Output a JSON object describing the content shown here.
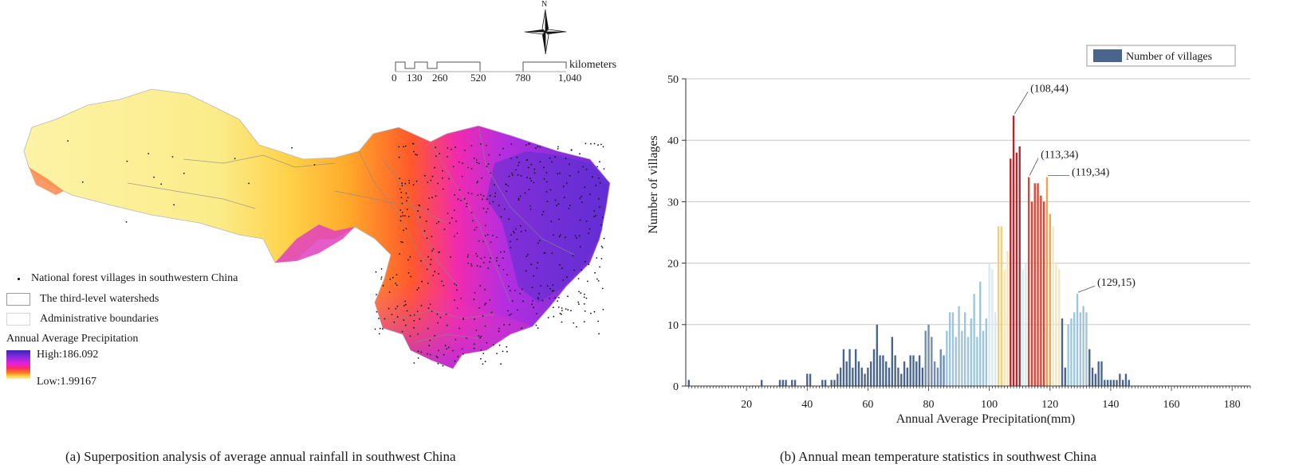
{
  "map": {
    "caption": "(a) Superposition analysis of average annual rainfall in southwest China",
    "north_label": "N",
    "scale_unit": "kilometers",
    "scale_ticks": [
      "0",
      "130",
      "260",
      "520",
      "780",
      "1,040"
    ],
    "legend": {
      "villages": "National forest villages in southwestern China",
      "watersheds": "The third-level watersheds",
      "admin": "Administrative boundaries",
      "precip_title": "Annual Average Precipitation",
      "high": "High:186.092",
      "low": "Low:1.99167"
    },
    "colors": {
      "high": "#3b22b8",
      "mid": "#e020e0",
      "warm": "#ff7a1a",
      "low": "#fff19a"
    }
  },
  "chart": {
    "caption": "(b) Annual mean temperature statistics in southwest China"
  },
  "chart_data": {
    "type": "bar",
    "title": "",
    "xlabel": "Annual Average Precipitation(mm)",
    "ylabel": "Number of villages",
    "xlim": [
      0,
      186
    ],
    "ylim": [
      0,
      50
    ],
    "xticks": [
      20,
      40,
      60,
      80,
      100,
      120,
      140,
      160,
      180
    ],
    "yticks": [
      0,
      10,
      20,
      30,
      40,
      50
    ],
    "legend": "Number of villages",
    "legend_position": "top-right",
    "grid": "horizontal",
    "colors": {
      "dark_blue": "#4a6490",
      "blue": "#6d8cb8",
      "light_blue": "#9ec5dc",
      "pale": "#d6ebf5",
      "light_yellow": "#f6e6b8",
      "yellow": "#f2cf7a",
      "orange": "#f2a14a",
      "red": "#d9473a",
      "dark_red": "#b8242a"
    },
    "bars": [
      {
        "x": 1,
        "y": 1
      },
      {
        "x": 25,
        "y": 1
      },
      {
        "x": 31,
        "y": 1
      },
      {
        "x": 32,
        "y": 1
      },
      {
        "x": 33,
        "y": 1
      },
      {
        "x": 35,
        "y": 1
      },
      {
        "x": 36,
        "y": 1
      },
      {
        "x": 40,
        "y": 2
      },
      {
        "x": 41,
        "y": 2
      },
      {
        "x": 45,
        "y": 1
      },
      {
        "x": 46,
        "y": 1
      },
      {
        "x": 48,
        "y": 1
      },
      {
        "x": 49,
        "y": 1
      },
      {
        "x": 50,
        "y": 2
      },
      {
        "x": 51,
        "y": 3
      },
      {
        "x": 52,
        "y": 6
      },
      {
        "x": 53,
        "y": 4
      },
      {
        "x": 54,
        "y": 6
      },
      {
        "x": 55,
        "y": 3
      },
      {
        "x": 56,
        "y": 6
      },
      {
        "x": 57,
        "y": 4
      },
      {
        "x": 58,
        "y": 3
      },
      {
        "x": 59,
        "y": 2
      },
      {
        "x": 60,
        "y": 3
      },
      {
        "x": 61,
        "y": 4
      },
      {
        "x": 62,
        "y": 6
      },
      {
        "x": 63,
        "y": 10
      },
      {
        "x": 64,
        "y": 5
      },
      {
        "x": 65,
        "y": 5
      },
      {
        "x": 66,
        "y": 4
      },
      {
        "x": 67,
        "y": 3
      },
      {
        "x": 68,
        "y": 8
      },
      {
        "x": 69,
        "y": 5
      },
      {
        "x": 70,
        "y": 3
      },
      {
        "x": 71,
        "y": 2
      },
      {
        "x": 72,
        "y": 4
      },
      {
        "x": 73,
        "y": 3
      },
      {
        "x": 74,
        "y": 5
      },
      {
        "x": 75,
        "y": 5
      },
      {
        "x": 76,
        "y": 4
      },
      {
        "x": 77,
        "y": 5
      },
      {
        "x": 78,
        "y": 3
      },
      {
        "x": 79,
        "y": 9
      },
      {
        "x": 80,
        "y": 10
      },
      {
        "x": 81,
        "y": 8
      },
      {
        "x": 82,
        "y": 4
      },
      {
        "x": 83,
        "y": 3
      },
      {
        "x": 84,
        "y": 6
      },
      {
        "x": 85,
        "y": 5
      },
      {
        "x": 86,
        "y": 9
      },
      {
        "x": 87,
        "y": 12
      },
      {
        "x": 88,
        "y": 12
      },
      {
        "x": 89,
        "y": 8
      },
      {
        "x": 90,
        "y": 13
      },
      {
        "x": 91,
        "y": 9
      },
      {
        "x": 92,
        "y": 12
      },
      {
        "x": 93,
        "y": 8
      },
      {
        "x": 94,
        "y": 11
      },
      {
        "x": 95,
        "y": 15
      },
      {
        "x": 96,
        "y": 8
      },
      {
        "x": 97,
        "y": 17
      },
      {
        "x": 98,
        "y": 9
      },
      {
        "x": 99,
        "y": 11
      },
      {
        "x": 100,
        "y": 20
      },
      {
        "x": 101,
        "y": 19
      },
      {
        "x": 102,
        "y": 12
      },
      {
        "x": 103,
        "y": 26
      },
      {
        "x": 104,
        "y": 26
      },
      {
        "x": 105,
        "y": 19
      },
      {
        "x": 106,
        "y": 22
      },
      {
        "x": 107,
        "y": 37
      },
      {
        "x": 108,
        "y": 44
      },
      {
        "x": 109,
        "y": 38
      },
      {
        "x": 110,
        "y": 39
      },
      {
        "x": 111,
        "y": 19
      },
      {
        "x": 112,
        "y": 20
      },
      {
        "x": 113,
        "y": 34
      },
      {
        "x": 114,
        "y": 30
      },
      {
        "x": 115,
        "y": 33
      },
      {
        "x": 116,
        "y": 33
      },
      {
        "x": 117,
        "y": 31
      },
      {
        "x": 118,
        "y": 30
      },
      {
        "x": 119,
        "y": 34
      },
      {
        "x": 120,
        "y": 28
      },
      {
        "x": 121,
        "y": 26
      },
      {
        "x": 122,
        "y": 20
      },
      {
        "x": 123,
        "y": 19
      },
      {
        "x": 124,
        "y": 11
      },
      {
        "x": 125,
        "y": 3
      },
      {
        "x": 126,
        "y": 10
      },
      {
        "x": 127,
        "y": 11
      },
      {
        "x": 128,
        "y": 12
      },
      {
        "x": 129,
        "y": 15
      },
      {
        "x": 130,
        "y": 12
      },
      {
        "x": 131,
        "y": 13
      },
      {
        "x": 132,
        "y": 12
      },
      {
        "x": 133,
        "y": 6
      },
      {
        "x": 134,
        "y": 3
      },
      {
        "x": 135,
        "y": 2
      },
      {
        "x": 136,
        "y": 4
      },
      {
        "x": 137,
        "y": 4
      },
      {
        "x": 138,
        "y": 1
      },
      {
        "x": 139,
        "y": 1
      },
      {
        "x": 140,
        "y": 1
      },
      {
        "x": 141,
        "y": 1
      },
      {
        "x": 142,
        "y": 1
      },
      {
        "x": 143,
        "y": 2
      },
      {
        "x": 144,
        "y": 1
      },
      {
        "x": 145,
        "y": 2
      },
      {
        "x": 146,
        "y": 1
      }
    ],
    "annotations": [
      {
        "text": "(108,44)",
        "x": 108,
        "y": 44
      },
      {
        "text": "(113,34)",
        "x": 113,
        "y": 34
      },
      {
        "text": "(119,34)",
        "x": 119,
        "y": 34
      },
      {
        "text": "(129,15)",
        "x": 129,
        "y": 15
      }
    ]
  }
}
